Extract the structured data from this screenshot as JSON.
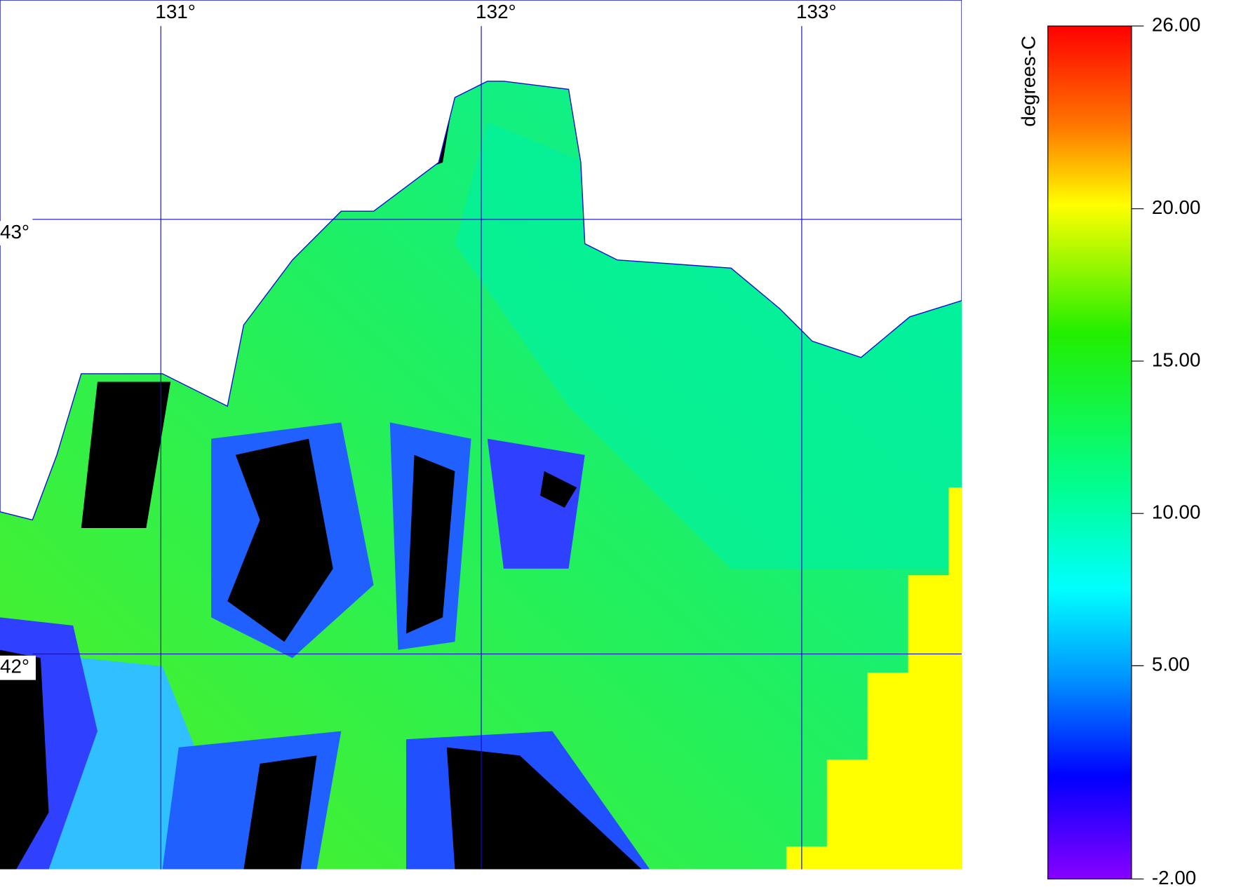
{
  "map": {
    "lon_lines": [
      {
        "value": 131,
        "label": "131°"
      },
      {
        "value": 132,
        "label": "132°"
      },
      {
        "value": 133,
        "label": "133°"
      }
    ],
    "lat_lines": [
      {
        "value": 43,
        "label": "43°"
      },
      {
        "value": 42,
        "label": "42°"
      }
    ],
    "colorbar": {
      "title": "degrees-C",
      "range": [
        -2,
        26
      ],
      "ticks": [
        {
          "value": 26,
          "label": "26.00"
        },
        {
          "value": 20,
          "label": "20.00"
        },
        {
          "value": 15,
          "label": "15.00"
        },
        {
          "value": 10,
          "label": "10.00"
        },
        {
          "value": 5,
          "label": "5.00"
        },
        {
          "value": -2,
          "label": "-2.00"
        }
      ]
    }
  }
}
